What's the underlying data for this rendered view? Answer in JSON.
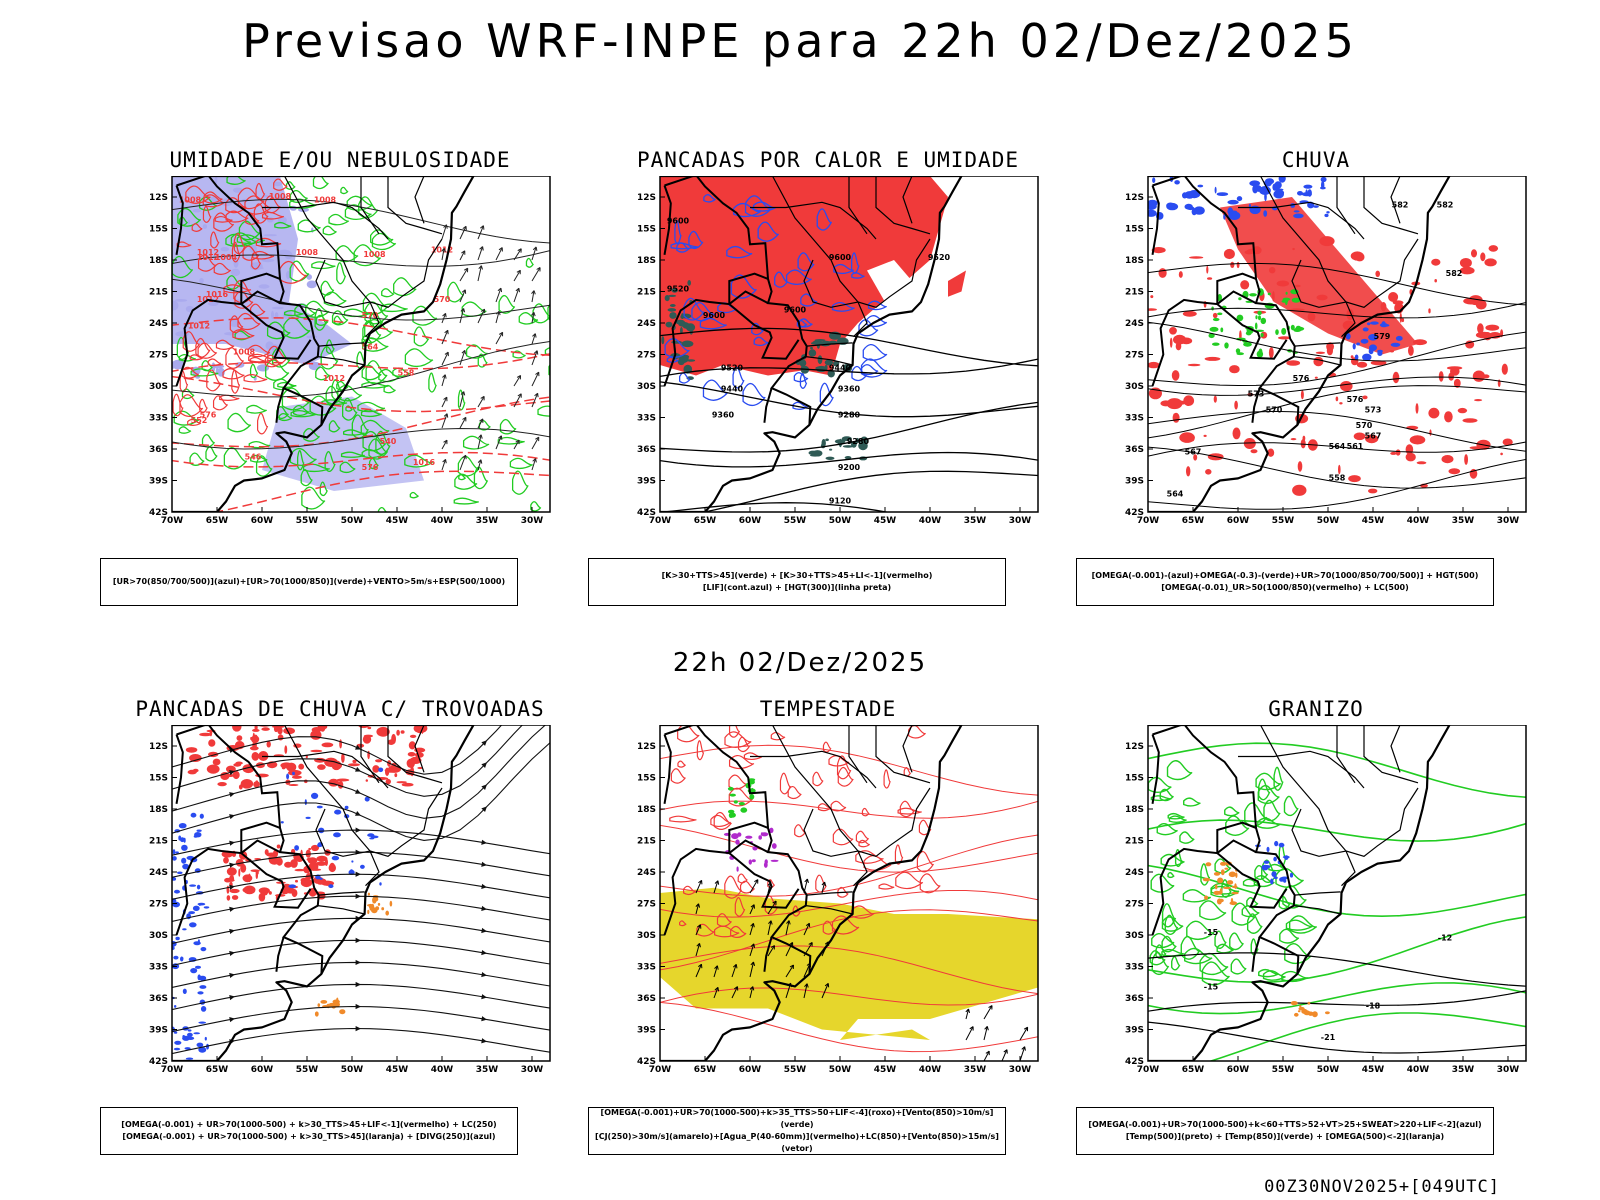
{
  "main_title": "Previsao WRF-INPE  para 22h 02/Dez/2025",
  "mid_title": "22h 02/Dez/2025",
  "footer": "00Z30NOV2025+[049UTC]",
  "colors": {
    "land_border": "#000000",
    "blue": "#2a4cf0",
    "green": "#22cc22",
    "red": "#f03a3a",
    "lavender": "#aaaaee",
    "dark_teal": "#2f5a55",
    "yellow": "#e6d62c",
    "orange": "#f08a2a",
    "purple": "#b02acc"
  },
  "chart_data": [
    {
      "type": "map",
      "id": "p1",
      "title": "UMIDADE E/OU NEBULOSIDADE",
      "x_ticks": [
        "70W",
        "65W",
        "60W",
        "55W",
        "50W",
        "45W",
        "40W",
        "35W",
        "30W"
      ],
      "y_ticks": [
        "12S",
        "15S",
        "18S",
        "21S",
        "24S",
        "27S",
        "30S",
        "33S",
        "36S",
        "39S",
        "42S"
      ],
      "lon_range": [
        -70,
        -28
      ],
      "lat_range": [
        -42,
        -10
      ],
      "contour_labels": [
        "1008",
        "1008",
        "1008",
        "1012",
        "1012",
        "1004",
        "1008",
        "1008",
        "1012",
        "1016",
        "1012",
        "1012",
        "1008",
        "1012",
        "1016",
        "576",
        "570",
        "564",
        "558",
        "552",
        "546",
        "540",
        "576",
        "570"
      ],
      "legend": [
        "[UR>70(850/700/500)](azul)+[UR>70(1000/850)](verde)+VENTO>5m/s+ESP(500/1000)"
      ]
    },
    {
      "type": "map",
      "id": "p2",
      "title": "PANCADAS POR CALOR E UMIDADE",
      "x_ticks": [
        "70W",
        "65W",
        "60W",
        "55W",
        "50W",
        "45W",
        "40W",
        "35W",
        "30W"
      ],
      "y_ticks": [
        "12S",
        "15S",
        "18S",
        "21S",
        "24S",
        "27S",
        "30S",
        "33S",
        "36S",
        "39S",
        "42S"
      ],
      "lon_range": [
        -70,
        -28
      ],
      "lat_range": [
        -42,
        -10
      ],
      "contour_labels": [
        "9600",
        "9520",
        "9600",
        "9600",
        "9600",
        "9520",
        "9520",
        "9440",
        "9440",
        "9360",
        "9360",
        "9280",
        "9280",
        "9200",
        "9120"
      ],
      "legend": [
        "[K>30+TTS>45](verde) + [K>30+TTS>45+LI<-1](vermelho)",
        "[LIF](cont.azul) + [HGT(300)](linha preta)"
      ]
    },
    {
      "type": "map",
      "id": "p3",
      "title": "CHUVA",
      "x_ticks": [
        "70W",
        "65W",
        "60W",
        "55W",
        "50W",
        "45W",
        "40W",
        "35W",
        "30W"
      ],
      "y_ticks": [
        "12S",
        "15S",
        "18S",
        "21S",
        "24S",
        "27S",
        "30S",
        "33S",
        "36S",
        "39S",
        "42S"
      ],
      "lon_range": [
        -70,
        -28
      ],
      "lat_range": [
        -42,
        -10
      ],
      "contour_labels": [
        "582",
        "582",
        "582",
        "579",
        "576",
        "573",
        "570",
        "567",
        "564",
        "561",
        "558",
        "576",
        "573",
        "570",
        "567",
        "564"
      ],
      "legend": [
        "[OMEGA(-0.001)-(azul)+OMEGA(-0.3)-(verde)+UR>70(1000/850/700/500)] + HGT(500)",
        "[OMEGA(-0.01)_UR>50(1000/850)(vermelho) + LC(500)"
      ]
    },
    {
      "type": "map",
      "id": "p4",
      "title": "PANCADAS DE CHUVA C/ TROVOADAS",
      "x_ticks": [
        "70W",
        "65W",
        "60W",
        "55W",
        "50W",
        "45W",
        "40W",
        "35W",
        "30W"
      ],
      "y_ticks": [
        "12S",
        "15S",
        "18S",
        "21S",
        "24S",
        "27S",
        "30S",
        "33S",
        "36S",
        "39S",
        "42S"
      ],
      "lon_range": [
        -70,
        -28
      ],
      "lat_range": [
        -42,
        -10
      ],
      "contour_labels": [],
      "legend": [
        "[OMEGA(-0.001) + UR>70(1000-500) + k>30_TTS>45+LIF<-1](vermelho) + LC(250)",
        "[OMEGA(-0.001) + UR>70(1000-500) + k>30_TTS>45](laranja) + [DIVG(250)](azul)"
      ]
    },
    {
      "type": "map",
      "id": "p5",
      "title": "TEMPESTADE",
      "x_ticks": [
        "70W",
        "65W",
        "60W",
        "55W",
        "50W",
        "45W",
        "40W",
        "35W",
        "30W"
      ],
      "y_ticks": [
        "12S",
        "15S",
        "18S",
        "21S",
        "24S",
        "27S",
        "30S",
        "33S",
        "36S",
        "39S",
        "42S"
      ],
      "lon_range": [
        -70,
        -28
      ],
      "lat_range": [
        -42,
        -10
      ],
      "contour_labels": [],
      "legend": [
        "[OMEGA(-0.001)+UR>70(1000-500)+k>35_TTS>50+LIF<-4](roxo)+[Vento(850)>10m/s](verde)",
        "[CJ(250)>30m/s](amarelo)+[Agua_P(40-60mm)](vermelho)+LC(850)+[Vento(850)>15m/s](vetor)"
      ]
    },
    {
      "type": "map",
      "id": "p6",
      "title": "GRANIZO",
      "x_ticks": [
        "70W",
        "65W",
        "60W",
        "55W",
        "50W",
        "45W",
        "40W",
        "35W",
        "30W"
      ],
      "y_ticks": [
        "12S",
        "15S",
        "18S",
        "21S",
        "24S",
        "27S",
        "30S",
        "33S",
        "36S",
        "39S",
        "42S"
      ],
      "lon_range": [
        -70,
        -28
      ],
      "lat_range": [
        -42,
        -10
      ],
      "contour_labels": [
        "-12",
        "-15",
        "-15",
        "-18",
        "-21"
      ],
      "legend": [
        "[OMEGA(-0.001)+UR>70(1000-500)+k<60+TTS>52+VT>25+SWEAT>220+LIF<-2](azul)",
        "[Temp(500)](preto) + [Temp(850)](verde) + [OMEGA(500)<-2](laranja)"
      ]
    }
  ]
}
